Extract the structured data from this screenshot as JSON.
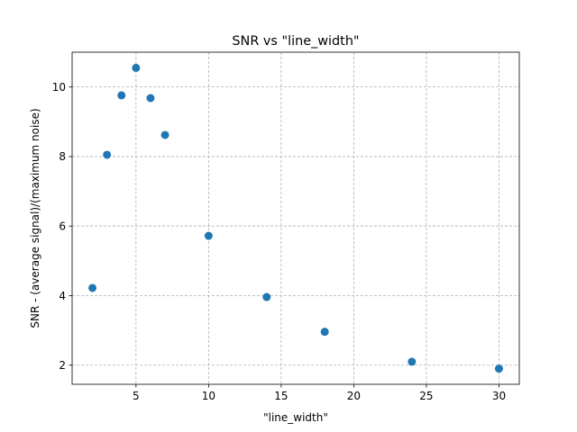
{
  "chart_data": {
    "type": "scatter",
    "title": "SNR vs \"line_width\"",
    "xlabel": "\"line_width\"",
    "ylabel": "SNR - (average signal)/(maximum noise)",
    "xlim": [
      0.6,
      31.4
    ],
    "ylim": [
      1.45,
      11.0
    ],
    "xticks": [
      5,
      10,
      15,
      20,
      25,
      30
    ],
    "yticks": [
      2,
      4,
      6,
      8,
      10
    ],
    "xtick_labels": [
      "5",
      "10",
      "15",
      "20",
      "25",
      "30"
    ],
    "ytick_labels": [
      "2",
      "4",
      "6",
      "8",
      "10"
    ],
    "grid": true,
    "color": "#1f77b4",
    "series": [
      {
        "x": [
          2,
          3,
          4,
          5,
          6,
          7,
          10,
          14,
          18,
          24,
          30
        ],
        "y": [
          4.22,
          8.05,
          9.76,
          10.55,
          9.68,
          8.62,
          5.72,
          3.96,
          2.96,
          2.1,
          1.9
        ]
      }
    ]
  }
}
